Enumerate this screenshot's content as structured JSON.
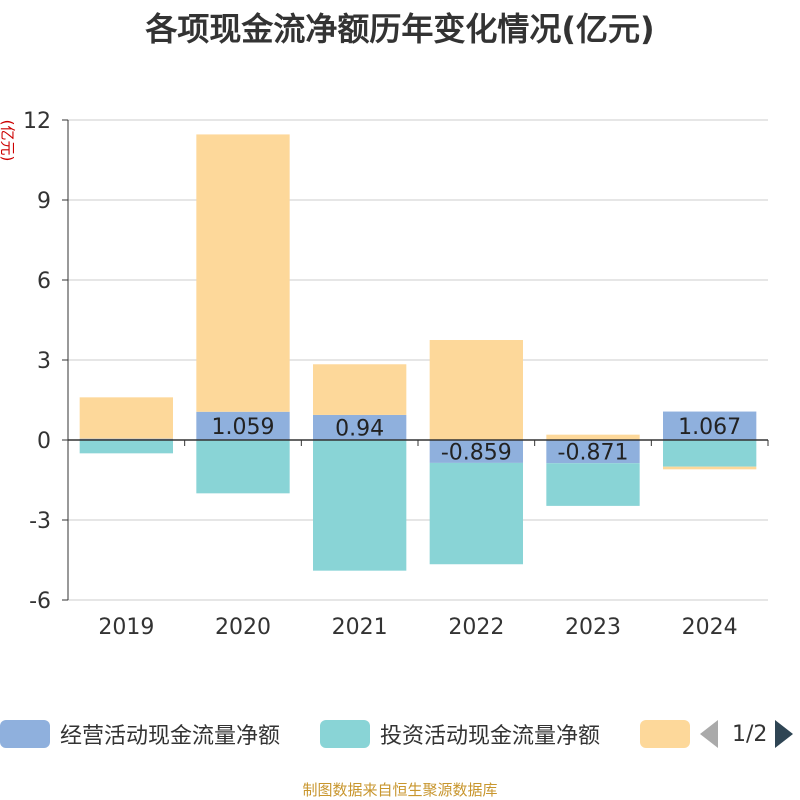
{
  "title": "各项现金流净额历年变化情况(亿元)",
  "unit_label": "(亿元)",
  "source": "制图数据来自恒生聚源数据库",
  "legend_pager": "1/2",
  "chart_data": {
    "type": "bar",
    "stacked": true,
    "categories": [
      "2019",
      "2020",
      "2021",
      "2022",
      "2023",
      "2024"
    ],
    "series": [
      {
        "name": "经营活动现金流量净额",
        "color": "#8fb0dd",
        "values": [
          0.05,
          1.059,
          0.94,
          -0.859,
          -0.871,
          1.067
        ],
        "labels": [
          "",
          "1.059",
          "0.94",
          "-0.859",
          "-0.871",
          "1.067"
        ]
      },
      {
        "name": "投资活动现金流量净额",
        "color": "#89d4d6",
        "values": [
          -0.5,
          -2.0,
          -4.9,
          -3.8,
          -1.6,
          -1.0
        ]
      },
      {
        "name": "",
        "color": "#fdd89a",
        "values": [
          1.55,
          10.4,
          1.9,
          3.75,
          0.2,
          -0.1
        ]
      }
    ],
    "ylim": [
      -6,
      12
    ],
    "yticks": [
      -6,
      -3,
      0,
      3,
      6,
      9,
      12
    ],
    "grid": true,
    "legend_position": "bottom"
  }
}
